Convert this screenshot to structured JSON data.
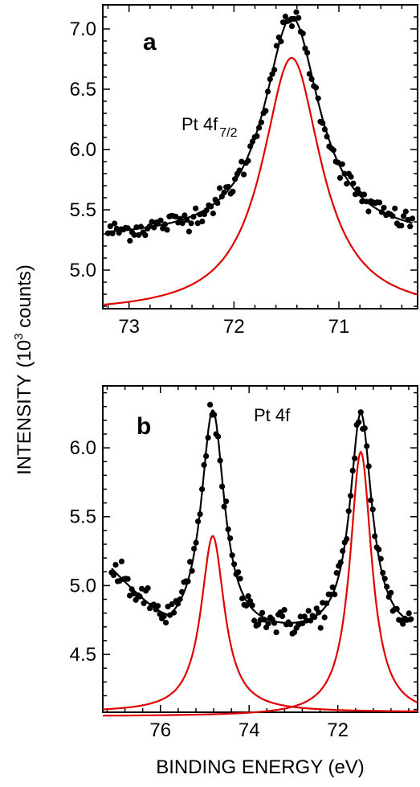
{
  "axis": {
    "ylabel": "INTENSITY",
    "yunit_open": "(10",
    "yunit_sup": "3",
    "yunit_close": " counts)",
    "xlabel": "BINDING ENERGY (eV)"
  },
  "colors": {
    "data": "#000000",
    "fit": "#000000",
    "component": "#e00000"
  },
  "chart_data": [
    {
      "type": "scatter",
      "panel_label": "a",
      "annotation": {
        "text": "Pt 4f",
        "sub": "7/2"
      },
      "xlim": [
        73.25,
        70.25
      ],
      "ylim": [
        4.68,
        7.2
      ],
      "x_reversed": true,
      "xticks": [
        73,
        72,
        71
      ],
      "xtick_labels": [
        "73",
        "72",
        "71"
      ],
      "yticks": [
        5.0,
        5.5,
        6.0,
        6.5,
        7.0
      ],
      "ytick_labels": [
        "5.0",
        "5.5",
        "6.0",
        "6.5",
        "7.0"
      ],
      "model": {
        "envelope": {
          "baseline": 5.26,
          "peaks": [
            {
              "center": 71.45,
              "height": 1.84,
              "width": 0.32
            }
          ]
        },
        "component": {
          "baseline": 4.64,
          "peaks": [
            {
              "center": 71.45,
              "height": 2.12,
              "width": 0.34
            }
          ]
        }
      },
      "series": [
        {
          "name": "data",
          "x_range": [
            73.2,
            70.3
          ],
          "points": 140,
          "noise": 0.045
        }
      ]
    },
    {
      "type": "scatter",
      "panel_label": "b",
      "annotation": {
        "text": "Pt 4f",
        "sub": ""
      },
      "xlim": [
        77.3,
        70.2
      ],
      "ylim": [
        4.08,
        6.45
      ],
      "x_reversed": true,
      "xticks": [
        76,
        74,
        72
      ],
      "xtick_labels": [
        "76",
        "74",
        "72"
      ],
      "yticks": [
        4.5,
        5.0,
        5.5,
        6.0
      ],
      "ytick_labels": [
        "4.5",
        "5.0",
        "5.5",
        "6.0"
      ],
      "model": {
        "envelope": {
          "baseline": 4.62,
          "peaks": [
            {
              "center": 74.82,
              "height": 1.64,
              "width": 0.32
            },
            {
              "center": 71.48,
              "height": 1.62,
              "width": 0.3
            }
          ],
          "high_be_tail": {
            "start": 75.8,
            "slope": 0.36
          }
        },
        "component_1": {
          "baseline": 4.08,
          "peaks": [
            {
              "center": 74.82,
              "height": 1.28,
              "width": 0.32
            }
          ]
        },
        "component_2": {
          "baseline": 4.05,
          "peaks": [
            {
              "center": 71.48,
              "height": 1.92,
              "width": 0.3
            }
          ]
        }
      },
      "series": [
        {
          "name": "data",
          "x_range": [
            77.1,
            70.35
          ],
          "points": 150,
          "noise": 0.05
        }
      ]
    }
  ]
}
